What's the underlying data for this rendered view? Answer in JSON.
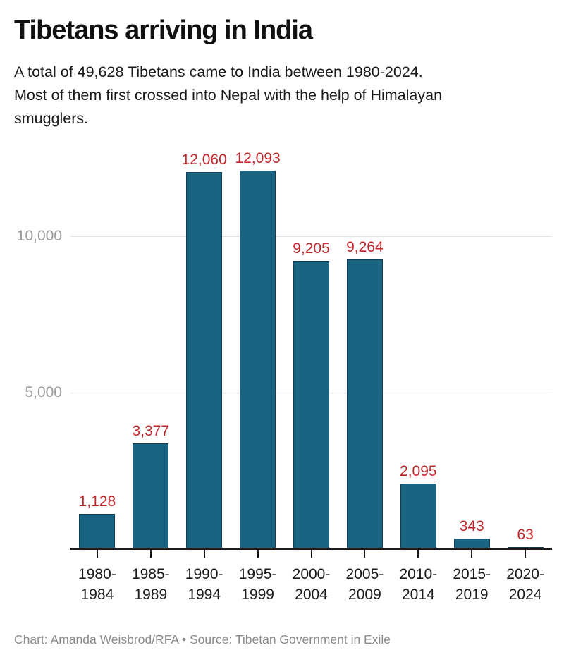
{
  "header": {
    "title": "Tibetans arriving in India",
    "subtitle_lines": [
      "A total of 49,628 Tibetans came to India between 1980-2024.",
      "Most of them first crossed into Nepal with the help of Himalayan",
      "smugglers."
    ]
  },
  "chart_data": {
    "type": "bar",
    "title": "Tibetans arriving in India",
    "xlabel": "",
    "ylabel": "",
    "categories": [
      "1980-1984",
      "1985-1989",
      "1990-1994",
      "1995-1999",
      "2000-2004",
      "2005-2009",
      "2010-2014",
      "2015-2019",
      "2020-2024"
    ],
    "category_lines": [
      [
        "1980-",
        "1984"
      ],
      [
        "1985-",
        "1989"
      ],
      [
        "1990-",
        "1994"
      ],
      [
        "1995-",
        "1999"
      ],
      [
        "2000-",
        "2004"
      ],
      [
        "2005-",
        "2009"
      ],
      [
        "2010-",
        "2014"
      ],
      [
        "2015-",
        "2019"
      ],
      [
        "2020-",
        "2024"
      ]
    ],
    "values": [
      1128,
      3377,
      12060,
      12093,
      9205,
      9264,
      2095,
      343,
      63
    ],
    "value_labels": [
      "1,128",
      "3,377",
      "12,060",
      "12,093",
      "9,205",
      "9,264",
      "2,095",
      "343",
      "63"
    ],
    "ylim": [
      0,
      12500
    ],
    "yticks": [
      {
        "value": 5000,
        "label": "5,000"
      },
      {
        "value": 10000,
        "label": "10,000"
      }
    ],
    "grid": "horizontal",
    "legend": "none",
    "colors": {
      "bar_fill": "#186480",
      "bar_border": "#143c52",
      "value_label": "#c2262a",
      "gridline": "#e2e2e2",
      "axis": "#1a1a1a",
      "y_label": "#9a9a9a"
    }
  },
  "footer": {
    "credit": "Chart: Amanda Weisbrod/RFA • Source: Tibetan Government in Exile"
  }
}
